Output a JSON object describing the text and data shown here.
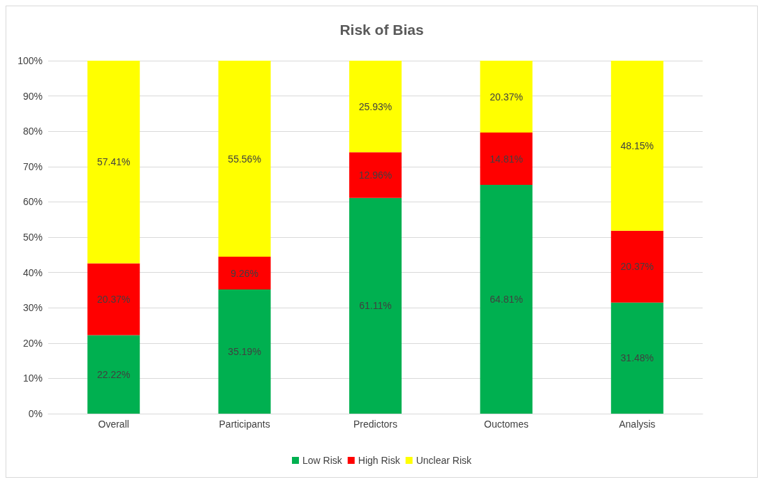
{
  "chart_data": {
    "type": "bar",
    "title": "Risk of Bias",
    "categories": [
      "Overall",
      "Participants",
      "Predictors",
      "Ouctomes",
      "Analysis"
    ],
    "stacked": true,
    "series": [
      {
        "name": "Low Risk",
        "color": "#00b050",
        "values": [
          22.22,
          35.19,
          61.11,
          64.81,
          31.48
        ],
        "value_labels": [
          "22.22%",
          "35.19%",
          "61.11%",
          "64.81%",
          "31.48%"
        ]
      },
      {
        "name": "High Risk",
        "color": "#ff0000",
        "values": [
          20.37,
          9.26,
          12.96,
          14.81,
          20.37
        ],
        "value_labels": [
          "20.37%",
          "9.26%",
          "12.96%",
          "14.81%",
          "20.37%"
        ]
      },
      {
        "name": "Unclear Risk",
        "color": "#ffff00",
        "values": [
          57.41,
          55.56,
          25.93,
          20.37,
          48.15
        ],
        "value_labels": [
          "57.41%",
          "55.56%",
          "25.93%",
          "20.37%",
          "48.15%"
        ]
      }
    ],
    "ylim": [
      0,
      100
    ],
    "yticks": [
      {
        "value": 0,
        "label": "0%"
      },
      {
        "value": 10,
        "label": "10%"
      },
      {
        "value": 20,
        "label": "20%"
      },
      {
        "value": 30,
        "label": "30%"
      },
      {
        "value": 40,
        "label": "40%"
      },
      {
        "value": 50,
        "label": "50%"
      },
      {
        "value": 60,
        "label": "60%"
      },
      {
        "value": 70,
        "label": "70%"
      },
      {
        "value": 80,
        "label": "80%"
      },
      {
        "value": 90,
        "label": "90%"
      },
      {
        "value": 100,
        "label": "100%"
      }
    ],
    "grid": "y",
    "legend": "bottom"
  }
}
